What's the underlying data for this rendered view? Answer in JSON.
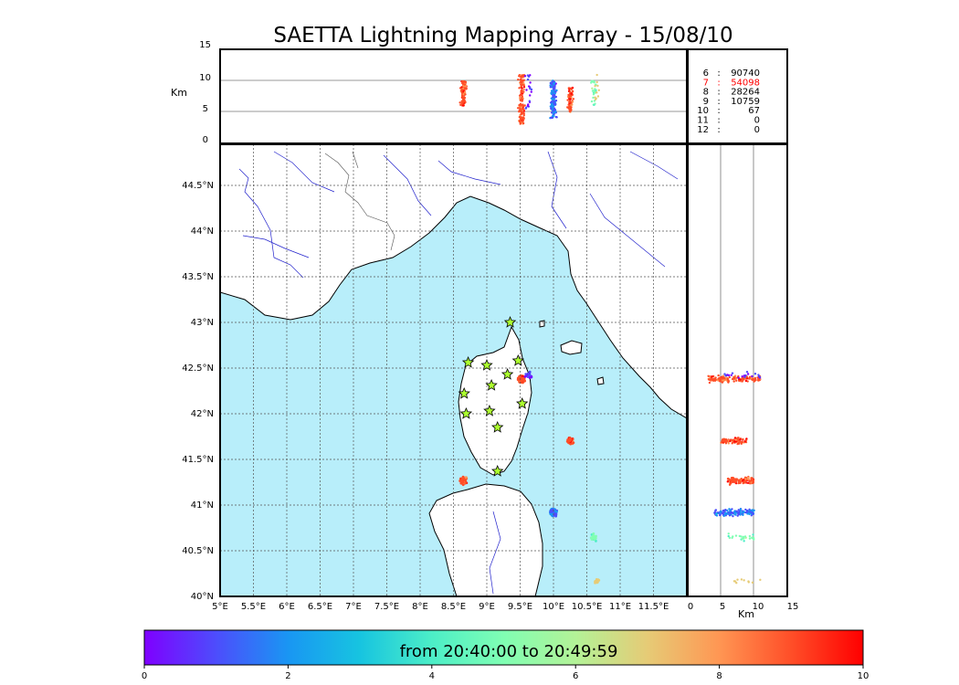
{
  "title": "SAETTA Lightning Mapping Array - 15/08/10",
  "top_panel": {
    "ylabel": "Km",
    "yticks": [
      "0",
      "5",
      "10",
      "15"
    ],
    "ylim": [
      0,
      15
    ]
  },
  "right_panel": {
    "xlabel": "Km",
    "xticks": [
      "0",
      "5",
      "10",
      "15"
    ],
    "xlim": [
      0,
      15
    ]
  },
  "map": {
    "lon_ticks": [
      "5°E",
      "5.5°E",
      "6°E",
      "6.5°E",
      "7°E",
      "7.5°E",
      "8°E",
      "8.5°E",
      "9°E",
      "9.5°E",
      "10°E",
      "10.5°E",
      "11°E",
      "11.5°E"
    ],
    "lat_ticks": [
      "40°N",
      "40.5°N",
      "41°N",
      "41.5°N",
      "42°N",
      "42.5°N",
      "43°N",
      "43.5°N",
      "44°N",
      "44.5°N"
    ],
    "lon_range": [
      5,
      12
    ],
    "lat_range": [
      40,
      44.95
    ],
    "sea_color": "#b8eefa",
    "stations": [
      {
        "lon": 9.35,
        "lat": 43.0
      },
      {
        "lon": 8.72,
        "lat": 42.56
      },
      {
        "lon": 9.0,
        "lat": 42.53
      },
      {
        "lon": 9.47,
        "lat": 42.58
      },
      {
        "lon": 9.07,
        "lat": 42.31
      },
      {
        "lon": 9.31,
        "lat": 42.43
      },
      {
        "lon": 8.66,
        "lat": 42.22
      },
      {
        "lon": 9.53,
        "lat": 42.11
      },
      {
        "lon": 8.69,
        "lat": 42.0
      },
      {
        "lon": 9.04,
        "lat": 42.03
      },
      {
        "lon": 9.16,
        "lat": 41.85
      },
      {
        "lon": 9.16,
        "lat": 41.37
      }
    ]
  },
  "station_counts": [
    {
      "id": "6",
      "count": "90740",
      "color": "#000000"
    },
    {
      "id": "7",
      "count": "54098",
      "color": "#ff0000"
    },
    {
      "id": "8",
      "count": "28264",
      "color": "#000000"
    },
    {
      "id": "9",
      "count": "10759",
      "color": "#000000"
    },
    {
      "id": "10",
      "count": "67",
      "color": "#000000"
    },
    {
      "id": "11",
      "count": "0",
      "color": "#000000"
    },
    {
      "id": "12",
      "count": "0",
      "color": "#000000"
    }
  ],
  "colorbar": {
    "label": "from 20:40:00 to 20:49:59",
    "ticks": [
      "0",
      "2",
      "4",
      "6",
      "8",
      "10"
    ],
    "range": [
      0,
      10
    ],
    "colors": [
      "#7f00ff",
      "#4d4dfc",
      "#1996f3",
      "#17c4e0",
      "#4ceec7",
      "#80feb3",
      "#b3f297",
      "#e6cb76",
      "#ff9653",
      "#ff4e28",
      "#ff0000"
    ]
  },
  "chart_data": {
    "type": "scatter",
    "title": "SAETTA Lightning Mapping Array - 15/08/10",
    "xlabel": "",
    "ylabel": "",
    "xlim": [
      5,
      12
    ],
    "ylim": [
      40,
      44.95
    ],
    "color_scale": "time (minutes)",
    "series": [
      {
        "lon": 8.65,
        "lat": 41.27,
        "alt_km": [
          6,
          10
        ],
        "time": 9.0,
        "count": 120
      },
      {
        "lon": 9.52,
        "lat": 42.38,
        "alt_km": [
          3,
          11
        ],
        "time": 8.8,
        "count": 150
      },
      {
        "lon": 9.62,
        "lat": 42.42,
        "alt_km": [
          5,
          11
        ],
        "time": 0.5,
        "count": 20
      },
      {
        "lon": 10.25,
        "lat": 41.7,
        "alt_km": [
          5,
          9
        ],
        "time": 9.0,
        "count": 80
      },
      {
        "lon": 10.0,
        "lat": 40.92,
        "alt_km": [
          4,
          10
        ],
        "time": 1.5,
        "count": 150
      },
      {
        "lon": 10.6,
        "lat": 40.65,
        "alt_km": [
          6,
          10
        ],
        "time": 5.0,
        "count": 25
      },
      {
        "lon": 10.65,
        "lat": 40.18,
        "alt_km": [
          7,
          11
        ],
        "time": 7.0,
        "count": 10
      }
    ]
  }
}
